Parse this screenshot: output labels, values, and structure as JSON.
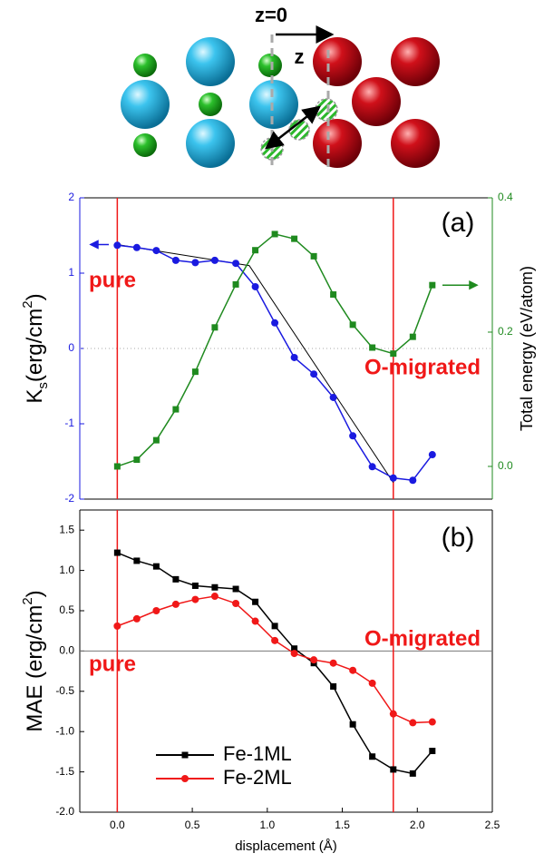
{
  "schematic": {
    "labels": [
      "z=0",
      "z"
    ]
  },
  "chart_data": [
    {
      "type": "line",
      "annotations": [
        "(a)",
        "pure",
        "O-migrated"
      ],
      "ylabel": [
        "K",
        "s",
        "(erg/cm",
        "2",
        ")"
      ],
      "y2label": "Total energy (eV/atom)",
      "ycolor": "#1a1ae0",
      "y2color": "#1f8a1f",
      "x": [
        0,
        0.13,
        0.26,
        0.39,
        0.52,
        0.65,
        0.79,
        0.92,
        1.05,
        1.18,
        1.31,
        1.44,
        1.57,
        1.7,
        1.84,
        1.97,
        2.1
      ],
      "series": [
        {
          "color": "#1a1ae0",
          "marker": "circle",
          "values": [
            1.37,
            1.34,
            1.3,
            1.17,
            1.14,
            1.17,
            1.13,
            0.82,
            0.34,
            -0.12,
            -0.34,
            -0.65,
            -1.16,
            -1.57,
            -1.72,
            -1.75,
            -1.41
          ]
        },
        {
          "color": "#1f8a1f",
          "marker": "square",
          "axis": "y2",
          "values": [
            0,
            0.01,
            0.039,
            0.085,
            0.141,
            0.207,
            0.271,
            0.322,
            0.346,
            0.339,
            0.313,
            0.256,
            0.211,
            0.177,
            0.168,
            0.193,
            0.27
          ]
        }
      ],
      "xlim": [
        -0.25,
        2.5
      ],
      "ylim": [
        -2,
        2
      ],
      "yticks": [
        -2,
        -1,
        0,
        1,
        2
      ],
      "y2lim": [
        -0.0487,
        0.4
      ],
      "y2ticks": [
        {
          "value": 0,
          "label": "0.0"
        },
        0.2,
        0.4
      ],
      "hline": 0,
      "hline_dash": true,
      "vlines": [
        0,
        1.84
      ]
    },
    {
      "type": "line",
      "annotations": [
        "(b)",
        "pure",
        "O-migrated"
      ],
      "ylabel": [
        "MAE (erg/cm",
        "2",
        ")"
      ],
      "xlabel": "displacement (Å)",
      "x": [
        0,
        0.13,
        0.26,
        0.39,
        0.52,
        0.65,
        0.79,
        0.92,
        1.05,
        1.18,
        1.31,
        1.44,
        1.57,
        1.7,
        1.84,
        1.97,
        2.1
      ],
      "series": [
        {
          "name": "Fe-1ML",
          "color": "#000000",
          "marker": "square",
          "values": [
            1.22,
            1.12,
            1.05,
            0.89,
            0.81,
            0.79,
            0.77,
            0.61,
            0.31,
            0.03,
            -0.15,
            -0.44,
            -0.91,
            -1.31,
            -1.47,
            -1.52,
            -1.24
          ]
        },
        {
          "name": "Fe-2ML",
          "color": "#f01818",
          "marker": "circle",
          "values": [
            0.31,
            0.4,
            0.5,
            0.58,
            0.64,
            0.68,
            0.59,
            0.37,
            0.13,
            -0.03,
            -0.11,
            -0.15,
            -0.24,
            -0.4,
            -0.78,
            -0.89,
            -0.88
          ]
        }
      ],
      "xlim": [
        -0.25,
        2.5
      ],
      "xticks": [
        {
          "value": 0,
          "label": "0.0"
        },
        0.5,
        {
          "value": 1,
          "label": "1.0"
        },
        1.5,
        {
          "value": 2,
          "label": "2.0"
        },
        2.5
      ],
      "ylim": [
        -2.0,
        1.75
      ],
      "yticks": [
        {
          "value": -2,
          "label": "-2.0"
        },
        -1.5,
        {
          "value": -1,
          "label": "-1.0"
        },
        -0.5,
        {
          "value": 0,
          "label": "0.0"
        },
        0.5,
        {
          "value": 1,
          "label": "1.0"
        },
        1.5
      ],
      "hline": 0,
      "hline_dash": false,
      "vlines": [
        0,
        1.84
      ],
      "legend": "lower left"
    }
  ]
}
